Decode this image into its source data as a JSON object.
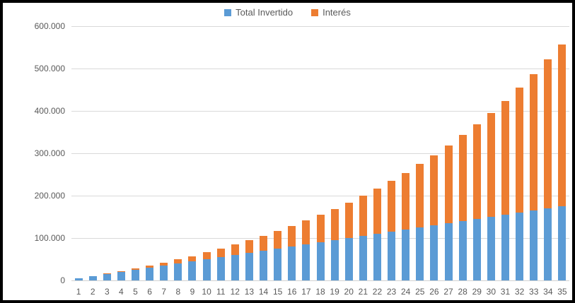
{
  "chart": {
    "legend": {
      "items": [
        {
          "label": "Total Invertido",
          "color": "#5B9BD5"
        },
        {
          "label": "Interés",
          "color": "#ED7D31"
        }
      ]
    },
    "y_axis_labels": [
      "600.000",
      "500.000",
      "400.000",
      "300.000",
      "200.000",
      "100.000",
      "0"
    ]
  },
  "chart_data": {
    "type": "bar",
    "stacked": true,
    "title": "",
    "xlabel": "",
    "ylabel": "",
    "categories": [
      1,
      2,
      3,
      4,
      5,
      6,
      7,
      8,
      9,
      10,
      11,
      12,
      13,
      14,
      15,
      16,
      17,
      18,
      19,
      20,
      21,
      22,
      23,
      24,
      25,
      26,
      27,
      28,
      29,
      30,
      31,
      32,
      33,
      34,
      35
    ],
    "series": [
      {
        "name": "Total Invertido",
        "color": "#5B9BD5",
        "values": [
          5000,
          10000,
          15000,
          20000,
          25000,
          30000,
          35000,
          40000,
          45000,
          50000,
          55000,
          60000,
          65000,
          70000,
          75000,
          80000,
          85000,
          90000,
          95000,
          100000,
          105000,
          110000,
          115000,
          120000,
          125000,
          130000,
          135000,
          140000,
          145000,
          150000,
          155000,
          160000,
          165000,
          170000,
          175000
        ]
      },
      {
        "name": "Interés",
        "color": "#ED7D31",
        "values": [
          0,
          300,
          918,
          1873,
          3185,
          4876,
          6969,
          9487,
          12456,
          15904,
          19858,
          24349,
          29410,
          35075,
          41379,
          48362,
          56064,
          64528,
          73800,
          83928,
          94964,
          106962,
          119979,
          134078,
          149323,
          165782,
          183529,
          202641,
          223199,
          245291,
          269009,
          294449,
          321716,
          350919,
          382174
        ]
      }
    ],
    "ylim": [
      0,
      600000
    ],
    "y_tick_step": 100000,
    "y_tick_format": "dot-thousands",
    "grid": true,
    "legend_position": "top-center"
  },
  "colors": {
    "background": "#FFFFFF",
    "frame_border": "#000000",
    "gridline": "#D9D9D9",
    "axis_text": "#595959"
  }
}
